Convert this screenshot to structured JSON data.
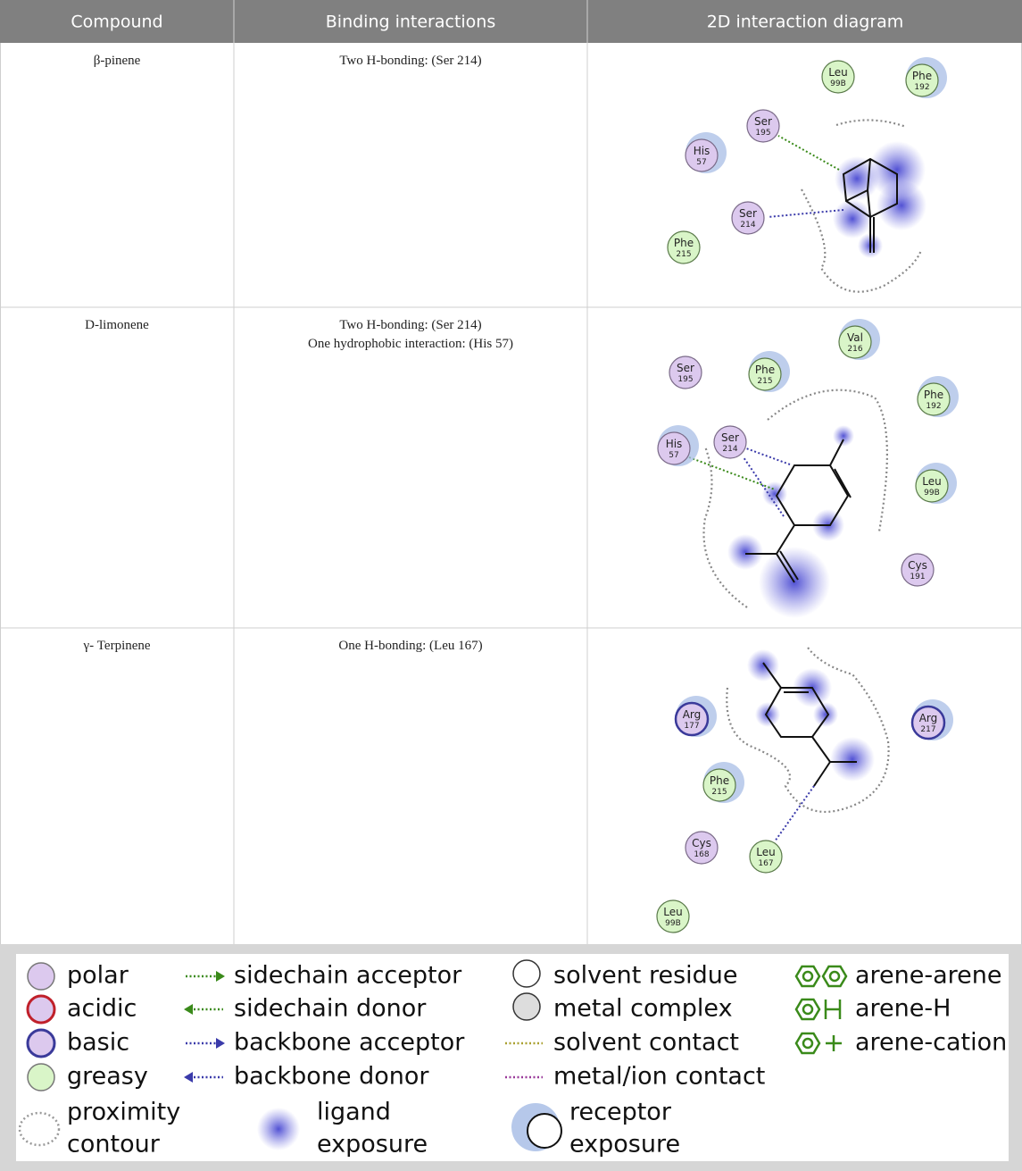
{
  "table": {
    "headers": [
      "Compound",
      "Binding interactions",
      "2D interaction diagram"
    ],
    "rows": [
      {
        "compound": "β-pinene",
        "interactions": [
          "Two H-bonding: (Ser 214)"
        ],
        "diagram": {
          "residues": [
            {
              "name": "Leu",
              "number": "99B",
              "type": "greasy"
            },
            {
              "name": "Phe",
              "number": "192",
              "type": "greasy"
            },
            {
              "name": "Ser",
              "number": "195",
              "type": "polar"
            },
            {
              "name": "His",
              "number": "57",
              "type": "polar"
            },
            {
              "name": "Ser",
              "number": "214",
              "type": "polar"
            },
            {
              "name": "Phe",
              "number": "215",
              "type": "greasy"
            }
          ]
        }
      },
      {
        "compound": "D-limonene",
        "interactions": [
          "Two H-bonding: (Ser 214)",
          "One hydrophobic interaction: (His 57)"
        ],
        "diagram": {
          "residues": [
            {
              "name": "Val",
              "number": "216",
              "type": "greasy"
            },
            {
              "name": "Ser",
              "number": "195",
              "type": "polar"
            },
            {
              "name": "Phe",
              "number": "215",
              "type": "greasy"
            },
            {
              "name": "Phe",
              "number": "192",
              "type": "greasy"
            },
            {
              "name": "His",
              "number": "57",
              "type": "polar"
            },
            {
              "name": "Ser",
              "number": "214",
              "type": "polar"
            },
            {
              "name": "Leu",
              "number": "99B",
              "type": "greasy"
            },
            {
              "name": "Cys",
              "number": "191",
              "type": "polar"
            }
          ]
        }
      },
      {
        "compound": "γ- Terpinene",
        "interactions": [
          "One H-bonding: (Leu 167)"
        ],
        "diagram": {
          "residues": [
            {
              "name": "Arg",
              "number": "177",
              "type": "basic"
            },
            {
              "name": "Arg",
              "number": "217",
              "type": "basic"
            },
            {
              "name": "Phe",
              "number": "215",
              "type": "greasy"
            },
            {
              "name": "Cys",
              "number": "168",
              "type": "polar"
            },
            {
              "name": "Leu",
              "number": "167",
              "type": "greasy"
            },
            {
              "name": "Leu",
              "number": "99B",
              "type": "greasy"
            }
          ]
        }
      }
    ]
  },
  "legend": {
    "items": [
      {
        "label": [
          "polar"
        ]
      },
      {
        "label": [
          "acidic"
        ]
      },
      {
        "label": [
          "basic"
        ]
      },
      {
        "label": [
          "greasy"
        ]
      },
      {
        "label": [
          "proximity",
          "contour"
        ]
      },
      {
        "label": [
          "sidechain acceptor"
        ]
      },
      {
        "label": [
          "sidechain donor"
        ]
      },
      {
        "label": [
          "backbone acceptor"
        ]
      },
      {
        "label": [
          "backbone donor"
        ]
      },
      {
        "label": [
          "ligand",
          "exposure"
        ]
      },
      {
        "label": [
          "solvent residue"
        ]
      },
      {
        "label": [
          "metal complex"
        ]
      },
      {
        "label": [
          "solvent contact"
        ]
      },
      {
        "label": [
          "metal/ion contact"
        ]
      },
      {
        "label": [
          "receptor",
          "exposure"
        ]
      },
      {
        "label": [
          "arene-arene"
        ]
      },
      {
        "label": [
          "arene-H"
        ]
      },
      {
        "label": [
          "arene-cation"
        ]
      }
    ]
  }
}
